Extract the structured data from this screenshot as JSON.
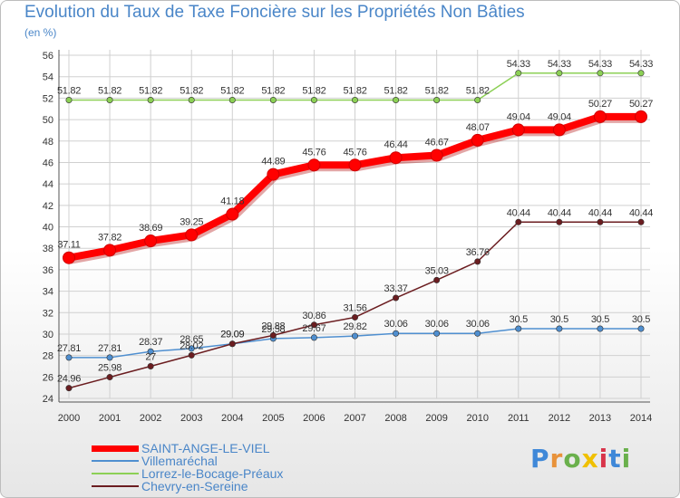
{
  "title": "Evolution du Taux de Taxe Foncière sur les Propriétés Non Bâties",
  "unit": "(en %)",
  "logo": {
    "letters": [
      "P",
      "r",
      "o",
      "x",
      "i",
      "t",
      "i"
    ],
    "colors": [
      "#3f88d8",
      "#e8923a",
      "#6ab04c",
      "#f0c000",
      "#d8344a",
      "#3f88d8",
      "#6ab04c"
    ]
  },
  "chart_data": {
    "type": "line",
    "title": "Evolution du Taux de Taxe Foncière sur les Propriétés Non Bâties",
    "ylabel": "(en %)",
    "xlabel": "",
    "ylim": [
      24,
      56
    ],
    "yticks": [
      "24",
      "26",
      "28",
      "30",
      "32",
      "34",
      "36",
      "38",
      "40",
      "42",
      "44",
      "46",
      "48",
      "50",
      "52",
      "54",
      "56"
    ],
    "categories": [
      "2000",
      "2001",
      "2002",
      "2003",
      "2004",
      "2005",
      "2006",
      "2007",
      "2008",
      "2009",
      "2010",
      "2011",
      "2012",
      "2013",
      "2014"
    ],
    "legend_position": "bottom-left",
    "series": [
      {
        "name": "SAINT-ANGE-LE-VIEL",
        "color": "#ff0000",
        "values": [
          37.11,
          37.82,
          38.69,
          39.25,
          41.18,
          44.89,
          45.76,
          45.76,
          46.44,
          46.67,
          48.07,
          49.04,
          49.04,
          50.27,
          50.27
        ],
        "labels": [
          "37.11",
          "37.82",
          "38.69",
          "39.25",
          "41.18",
          "44.89",
          "45.76",
          "45.76",
          "46.44",
          "46.67",
          "48.07",
          "49.04",
          "49.04",
          "50.27",
          "50.27"
        ]
      },
      {
        "name": "Villemaréchal",
        "color": "#4f8fd0",
        "values": [
          27.81,
          27.81,
          28.37,
          28.65,
          29.09,
          29.58,
          29.67,
          29.82,
          30.06,
          30.06,
          30.06,
          30.5,
          30.5,
          30.5,
          30.5
        ],
        "labels": [
          "27.81",
          "27.81",
          "28.37",
          "28.65",
          "29.09",
          "29.58",
          "29.67",
          "29.82",
          "30.06",
          "30.06",
          "30.06",
          "30.5",
          "30.5",
          "30.5",
          "30.5"
        ]
      },
      {
        "name": "Lorrez-le-Bocage-Préaux",
        "color": "#8cd055",
        "values": [
          51.82,
          51.82,
          51.82,
          51.82,
          51.82,
          51.82,
          51.82,
          51.82,
          51.82,
          51.82,
          51.82,
          54.33,
          54.33,
          54.33,
          54.33
        ],
        "labels": [
          "51.82",
          "51.82",
          "51.82",
          "51.82",
          "51.82",
          "51.82",
          "51.82",
          "51.82",
          "51.82",
          "51.82",
          "51.82",
          "54.33",
          "54.33",
          "54.33",
          "54.33"
        ]
      },
      {
        "name": "Chevry-en-Sereine",
        "color": "#6b1d20",
        "values": [
          24.96,
          25.98,
          27.0,
          28.02,
          29.09,
          29.88,
          30.86,
          31.56,
          33.37,
          35.03,
          36.76,
          40.44,
          40.44,
          40.44,
          40.44
        ],
        "labels": [
          "24.96",
          "25.98",
          "27",
          "28.02",
          "29.09",
          "29.88",
          "30.86",
          "31.56",
          "33.37",
          "35.03",
          "36.76",
          "40.44",
          "40.44",
          "40.44",
          "40.44"
        ]
      }
    ]
  }
}
